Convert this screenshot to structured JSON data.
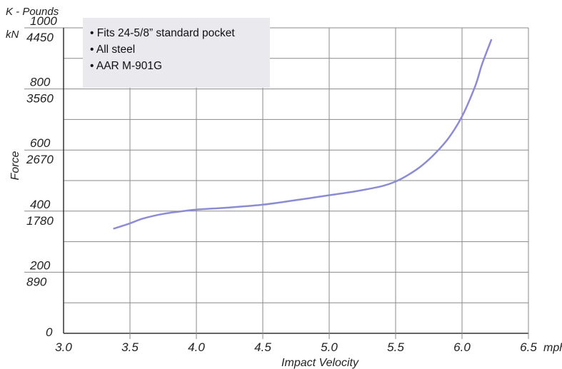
{
  "chart_data": {
    "type": "line",
    "title": "",
    "xlabel": "Impact Velocity",
    "x_unit": "mph",
    "ylabel": "Force",
    "y_units": [
      "K - Pounds",
      "kN"
    ],
    "xlim": [
      3.0,
      6.5
    ],
    "ylim": [
      0,
      1000
    ],
    "x_ticks": [
      "3.0",
      "3.5",
      "4.0",
      "4.5",
      "5.0",
      "5.5",
      "6.0",
      "6.5"
    ],
    "y_ticks_kpounds": [
      "0",
      "200",
      "400",
      "600",
      "800",
      "1000"
    ],
    "y_ticks_kn": [
      "890",
      "1780",
      "2670",
      "3560",
      "4450"
    ],
    "grid": true,
    "series": [
      {
        "color": "#8b8bd6",
        "x": [
          3.38,
          3.5,
          3.6,
          3.75,
          3.9,
          4.0,
          4.25,
          4.5,
          4.75,
          5.0,
          5.2,
          5.4,
          5.5,
          5.6,
          5.7,
          5.8,
          5.9,
          6.0,
          6.1,
          6.15,
          6.22
        ],
        "y": [
          343,
          360,
          376,
          391,
          400,
          405,
          412,
          421,
          436,
          452,
          465,
          482,
          497,
          520,
          550,
          590,
          640,
          710,
          810,
          880,
          960
        ]
      }
    ]
  },
  "features": [
    "• Fits 24-5/8” standard pocket",
    "• All steel",
    "• AAR M-901G"
  ]
}
